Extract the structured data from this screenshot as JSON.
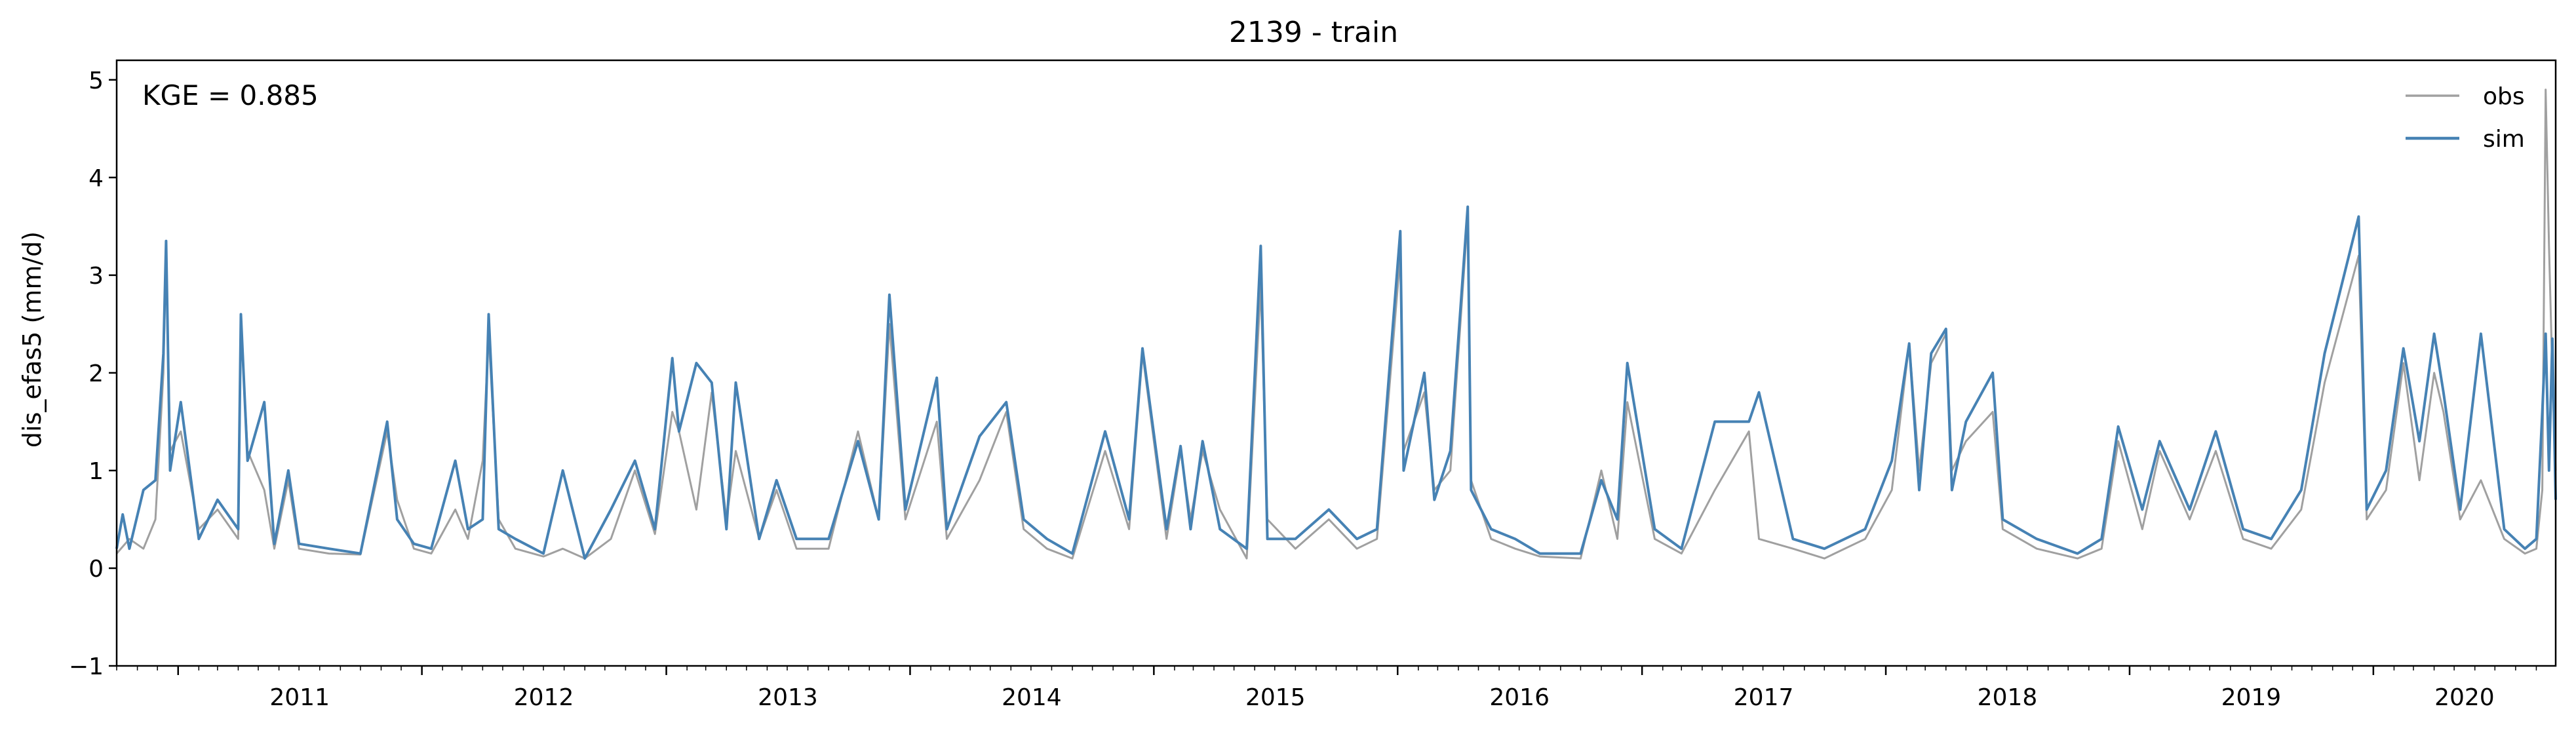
{
  "chart_data": {
    "type": "line",
    "title": "2139 - train",
    "xlabel": "",
    "ylabel": "dis_efas5 (mm/d)",
    "annotation": "KGE = 0.885",
    "x_range": [
      "2010-10-01",
      "2020-09-30"
    ],
    "ylim": [
      -1,
      5.2
    ],
    "x_ticks": [
      "2011",
      "2012",
      "2013",
      "2014",
      "2015",
      "2016",
      "2017",
      "2018",
      "2019",
      "2020"
    ],
    "y_ticks": [
      "−1",
      "0",
      "1",
      "2",
      "3",
      "4",
      "5"
    ],
    "y_tick_values": [
      -1,
      0,
      1,
      2,
      3,
      4,
      5
    ],
    "grid": false,
    "legend": {
      "position": "top-right"
    },
    "series": [
      {
        "name": "obs",
        "color": "#a0a0a0",
        "x": [
          "2010-10-01",
          "2010-10-20",
          "2010-11-10",
          "2010-11-28",
          "2010-12-10",
          "2010-12-14",
          "2010-12-20",
          "2011-01-05",
          "2011-02-01",
          "2011-03-01",
          "2011-04-01",
          "2011-04-05",
          "2011-04-15",
          "2011-05-10",
          "2011-05-25",
          "2011-06-15",
          "2011-07-01",
          "2011-08-15",
          "2011-10-01",
          "2011-11-10",
          "2011-11-25",
          "2011-12-20",
          "2012-01-15",
          "2012-02-20",
          "2012-03-10",
          "2012-04-01",
          "2012-04-10",
          "2012-04-25",
          "2012-05-20",
          "2012-07-01",
          "2012-07-30",
          "2012-09-01",
          "2012-10-10",
          "2012-11-15",
          "2012-12-15",
          "2013-01-10",
          "2013-01-20",
          "2013-02-15",
          "2013-03-10",
          "2013-04-01",
          "2013-04-15",
          "2013-05-20",
          "2013-06-15",
          "2013-07-15",
          "2013-09-01",
          "2013-10-15",
          "2013-11-15",
          "2013-12-01",
          "2013-12-25",
          "2014-02-10",
          "2014-02-25",
          "2014-04-15",
          "2014-05-25",
          "2014-06-20",
          "2014-07-25",
          "2014-09-01",
          "2014-10-20",
          "2014-11-25",
          "2014-12-15",
          "2015-01-20",
          "2015-02-10",
          "2015-02-25",
          "2015-03-15",
          "2015-04-10",
          "2015-05-20",
          "2015-06-10",
          "2015-06-20",
          "2015-08-01",
          "2015-09-20",
          "2015-11-01",
          "2015-12-01",
          "2016-01-05",
          "2016-01-10",
          "2016-02-10",
          "2016-02-25",
          "2016-03-20",
          "2016-04-15",
          "2016-04-20",
          "2016-05-20",
          "2016-06-25",
          "2016-08-01",
          "2016-10-01",
          "2016-11-01",
          "2016-11-25",
          "2016-12-10",
          "2017-01-20",
          "2017-03-01",
          "2017-04-20",
          "2017-06-10",
          "2017-06-25",
          "2017-08-15",
          "2017-10-01",
          "2017-12-01",
          "2018-01-10",
          "2018-02-05",
          "2018-02-20",
          "2018-03-10",
          "2018-04-01",
          "2018-04-10",
          "2018-05-01",
          "2018-06-10",
          "2018-06-25",
          "2018-08-15",
          "2018-10-15",
          "2018-11-20",
          "2018-12-15",
          "2019-01-20",
          "2019-02-15",
          "2019-04-01",
          "2019-05-10",
          "2019-06-20",
          "2019-08-01",
          "2019-09-15",
          "2019-10-20",
          "2019-12-10",
          "2019-12-22",
          "2020-01-20",
          "2020-02-15",
          "2020-03-10",
          "2020-04-01",
          "2020-04-15",
          "2020-05-10",
          "2020-06-10",
          "2020-07-15",
          "2020-08-15",
          "2020-09-01",
          "2020-09-10",
          "2020-09-15",
          "2020-09-20",
          "2020-09-25",
          "2020-09-30"
        ],
        "values": [
          0.15,
          0.3,
          0.2,
          0.5,
          2.0,
          3.3,
          1.2,
          1.4,
          0.4,
          0.6,
          0.3,
          2.5,
          1.2,
          0.8,
          0.2,
          0.9,
          0.2,
          0.15,
          0.14,
          1.4,
          0.7,
          0.2,
          0.15,
          0.6,
          0.3,
          1.1,
          2.4,
          0.5,
          0.2,
          0.12,
          0.2,
          0.1,
          0.3,
          1.0,
          0.35,
          1.6,
          1.4,
          0.6,
          1.8,
          0.5,
          1.2,
          0.3,
          0.8,
          0.2,
          0.2,
          1.4,
          0.5,
          2.5,
          0.5,
          1.5,
          0.3,
          0.9,
          1.6,
          0.4,
          0.2,
          0.1,
          1.2,
          0.4,
          2.2,
          0.3,
          1.2,
          0.5,
          1.2,
          0.6,
          0.1,
          2.9,
          0.5,
          0.2,
          0.5,
          0.2,
          0.3,
          3.2,
          1.2,
          1.8,
          0.8,
          1.0,
          3.6,
          0.9,
          0.3,
          0.2,
          0.12,
          0.1,
          1.0,
          0.3,
          1.7,
          0.3,
          0.15,
          0.8,
          1.4,
          0.3,
          0.2,
          0.1,
          0.3,
          0.8,
          2.3,
          1.0,
          2.1,
          2.4,
          1.0,
          1.3,
          1.6,
          0.4,
          0.2,
          0.1,
          0.2,
          1.3,
          0.4,
          1.2,
          0.5,
          1.2,
          0.3,
          0.2,
          0.6,
          1.9,
          3.2,
          0.5,
          0.8,
          2.1,
          0.9,
          2.0,
          1.6,
          0.5,
          0.9,
          0.3,
          0.15,
          0.2,
          0.8,
          4.9,
          3.3,
          2.0,
          1.0
        ]
      },
      {
        "name": "sim",
        "color": "#4682b4",
        "x": [
          "2010-10-01",
          "2010-10-10",
          "2010-10-20",
          "2010-11-10",
          "2010-11-28",
          "2010-12-10",
          "2010-12-14",
          "2010-12-20",
          "2011-01-05",
          "2011-02-01",
          "2011-03-01",
          "2011-04-01",
          "2011-04-05",
          "2011-04-15",
          "2011-05-10",
          "2011-05-25",
          "2011-06-15",
          "2011-07-01",
          "2011-08-15",
          "2011-10-01",
          "2011-11-10",
          "2011-11-25",
          "2011-12-20",
          "2012-01-15",
          "2012-02-20",
          "2012-03-10",
          "2012-04-01",
          "2012-04-10",
          "2012-04-25",
          "2012-05-20",
          "2012-07-01",
          "2012-07-30",
          "2012-09-01",
          "2012-10-10",
          "2012-11-15",
          "2012-12-15",
          "2013-01-10",
          "2013-01-20",
          "2013-02-15",
          "2013-03-10",
          "2013-04-01",
          "2013-04-15",
          "2013-05-20",
          "2013-06-15",
          "2013-07-15",
          "2013-09-01",
          "2013-10-15",
          "2013-11-15",
          "2013-12-01",
          "2013-12-25",
          "2014-02-10",
          "2014-02-25",
          "2014-04-15",
          "2014-05-25",
          "2014-06-20",
          "2014-07-25",
          "2014-09-01",
          "2014-10-20",
          "2014-11-25",
          "2014-12-15",
          "2015-01-20",
          "2015-02-10",
          "2015-02-25",
          "2015-03-15",
          "2015-04-10",
          "2015-05-20",
          "2015-06-10",
          "2015-06-20",
          "2015-08-01",
          "2015-09-20",
          "2015-11-01",
          "2015-12-01",
          "2016-01-05",
          "2016-01-10",
          "2016-02-10",
          "2016-02-25",
          "2016-03-20",
          "2016-04-15",
          "2016-04-20",
          "2016-05-20",
          "2016-06-25",
          "2016-08-01",
          "2016-10-01",
          "2016-11-01",
          "2016-11-25",
          "2016-12-10",
          "2017-01-20",
          "2017-03-01",
          "2017-04-20",
          "2017-06-10",
          "2017-06-25",
          "2017-08-15",
          "2017-10-01",
          "2017-12-01",
          "2018-01-10",
          "2018-02-05",
          "2018-02-20",
          "2018-03-10",
          "2018-04-01",
          "2018-04-10",
          "2018-05-01",
          "2018-06-10",
          "2018-06-25",
          "2018-08-15",
          "2018-10-15",
          "2018-11-20",
          "2018-12-15",
          "2019-01-20",
          "2019-02-15",
          "2019-04-01",
          "2019-05-10",
          "2019-06-20",
          "2019-08-01",
          "2019-09-15",
          "2019-10-20",
          "2019-12-10",
          "2019-12-22",
          "2020-01-20",
          "2020-02-15",
          "2020-03-10",
          "2020-04-01",
          "2020-04-15",
          "2020-05-10",
          "2020-06-10",
          "2020-07-15",
          "2020-08-15",
          "2020-09-01",
          "2020-09-10",
          "2020-09-15",
          "2020-09-20",
          "2020-09-25",
          "2020-09-30"
        ],
        "values": [
          0.2,
          0.55,
          0.2,
          0.8,
          0.9,
          2.2,
          3.35,
          1.0,
          1.7,
          0.3,
          0.7,
          0.4,
          2.6,
          1.1,
          1.7,
          0.25,
          1.0,
          0.25,
          0.2,
          0.15,
          1.5,
          0.5,
          0.25,
          0.2,
          1.1,
          0.4,
          0.5,
          2.6,
          0.4,
          0.3,
          0.15,
          1.0,
          0.1,
          0.6,
          1.1,
          0.4,
          2.15,
          1.4,
          2.1,
          1.9,
          0.4,
          1.9,
          0.3,
          0.9,
          0.3,
          0.3,
          1.3,
          0.5,
          2.8,
          0.6,
          1.95,
          0.4,
          1.35,
          1.7,
          0.5,
          0.3,
          0.15,
          1.4,
          0.5,
          2.25,
          0.4,
          1.25,
          0.4,
          1.3,
          0.4,
          0.2,
          3.3,
          0.3,
          0.3,
          0.6,
          0.3,
          0.4,
          3.45,
          1.0,
          2.0,
          0.7,
          1.2,
          3.7,
          0.8,
          0.4,
          0.3,
          0.15,
          0.15,
          0.9,
          0.5,
          2.1,
          0.4,
          0.2,
          1.5,
          1.5,
          1.8,
          0.3,
          0.2,
          0.4,
          1.1,
          2.3,
          0.8,
          2.2,
          2.45,
          0.8,
          1.5,
          2.0,
          0.5,
          0.3,
          0.15,
          0.3,
          1.45,
          0.6,
          1.3,
          0.6,
          1.4,
          0.4,
          0.3,
          0.8,
          2.2,
          3.6,
          0.6,
          1.0,
          2.25,
          1.3,
          2.4,
          1.8,
          0.6,
          2.4,
          0.4,
          0.2,
          0.3,
          1.6,
          2.4,
          1.0,
          2.35,
          0.7
        ]
      }
    ]
  }
}
